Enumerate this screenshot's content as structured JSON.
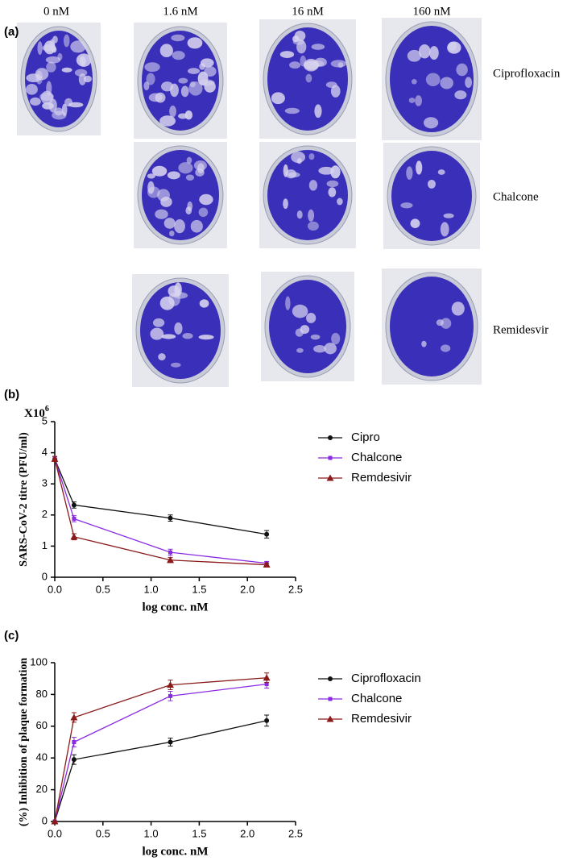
{
  "panel_a": {
    "label": "(a)",
    "concentrations": [
      "0 nM",
      "1.6 nM",
      "16 nM",
      "160 nM"
    ],
    "compounds": [
      "Ciprofloxacin",
      "Chalcone",
      "Remidesvir"
    ]
  },
  "chart_data": [
    {
      "type": "line",
      "panel_label": "(b)",
      "y_multiplier": {
        "base": "X10",
        "exponent": "6"
      },
      "x_label": "log conc. nM",
      "y_label": "SARS-CoV-2 titre (PFU/ml)",
      "x": [
        0,
        0.2,
        1.2,
        2.2
      ],
      "series": [
        {
          "name": "Cipro",
          "color": "#111111",
          "marker": "circle",
          "values": [
            3.8,
            2.32,
            1.9,
            1.38
          ],
          "errors": [
            0.08,
            0.1,
            0.1,
            0.12
          ]
        },
        {
          "name": "Chalcone",
          "color": "#8a2be2",
          "marker": "square",
          "values": [
            3.8,
            1.88,
            0.8,
            0.45
          ],
          "errors": [
            0.08,
            0.1,
            0.1,
            0.06
          ]
        },
        {
          "name": "Remdesivir",
          "color": "#8b1a1a",
          "marker": "triangle",
          "values": [
            3.8,
            1.3,
            0.55,
            0.4
          ],
          "errors": [
            0.08,
            0.1,
            0.08,
            0.05
          ]
        }
      ],
      "xlim": [
        0,
        2.5
      ],
      "ylim": [
        0,
        5
      ],
      "xticks": [
        {
          "value": 0,
          "label": "0.0"
        },
        0.5,
        {
          "value": 1,
          "label": "1.0"
        },
        1.5,
        {
          "value": 2,
          "label": "2.0"
        },
        2.5
      ],
      "yticks": [
        0,
        1,
        2,
        3,
        4,
        5
      ]
    },
    {
      "type": "line",
      "panel_label": "(c)",
      "x_label": "log conc. nM",
      "y_label": "(%) Inhibition of plaque formation",
      "x": [
        0,
        0.2,
        1.2,
        2.2
      ],
      "series": [
        {
          "name": "Ciprofloxacin",
          "color": "#111111",
          "marker": "circle",
          "values": [
            0,
            39,
            50,
            63.5
          ],
          "errors": [
            0,
            3,
            2.5,
            3.5
          ]
        },
        {
          "name": "Chalcone",
          "color": "#8a2be2",
          "marker": "square",
          "values": [
            0,
            50,
            79,
            86.5
          ],
          "errors": [
            0,
            3,
            3,
            2.5
          ]
        },
        {
          "name": "Remdesivir",
          "color": "#8b1a1a",
          "marker": "triangle",
          "values": [
            0,
            65.5,
            86,
            90.5
          ],
          "errors": [
            0,
            3,
            3,
            3
          ]
        }
      ],
      "xlim": [
        0,
        2.5
      ],
      "ylim": [
        0,
        100
      ],
      "xticks": [
        {
          "value": 0,
          "label": "0.0"
        },
        0.5,
        {
          "value": 1,
          "label": "1.0"
        },
        1.5,
        {
          "value": 2,
          "label": "2.0"
        },
        2.5
      ],
      "yticks": [
        0,
        20,
        40,
        60,
        80,
        100
      ]
    }
  ]
}
